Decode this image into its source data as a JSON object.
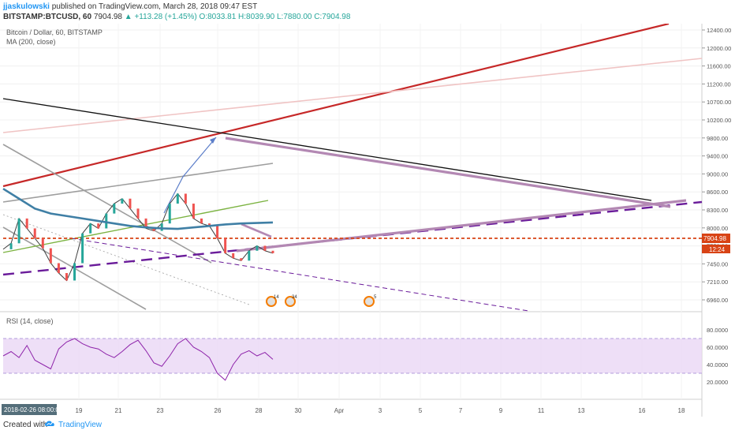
{
  "header": {
    "author": "jjaskulowski",
    "published_text": "published on TradingView.com, March 28, 2018 09:47 EST",
    "symbol": "BITSTAMP:BTCUSD, 60",
    "last_price": "7904.98",
    "change": "▲ +113.28 (+1.45%)",
    "open": "O:8033.81",
    "high": "H:8039.90",
    "low": "L:7880.00",
    "close": "C:7904.98"
  },
  "chart_data": {
    "type": "line",
    "title": "Bitcoin / Dollar, 60, BITSTAMP",
    "indicator_label": "MA (200, close)",
    "rsi_label": "RSI (14, close)",
    "y_ticks": [
      "12400.00",
      "12000.00",
      "11600.00",
      "11200.00",
      "10700.00",
      "10200.00",
      "9800.00",
      "9400.00",
      "9000.00",
      "8600.00",
      "8300.00",
      "8000.00",
      "7750.00",
      "7450.00",
      "7210.00",
      "6960.00"
    ],
    "rsi_ticks": [
      "80.0000",
      "60.0000",
      "40.0000",
      "20.0000"
    ],
    "x_ticks": [
      "19",
      "21",
      "23",
      "26",
      "28",
      "30",
      "Apr",
      "3",
      "5",
      "7",
      "9",
      "11",
      "13",
      "16",
      "18"
    ],
    "crosshair_date": "2018-02-26 08:00:00",
    "last_price_label": "7904.98",
    "countdown_label": "12:24",
    "price_series": [
      7980,
      8100,
      8600,
      8400,
      8200,
      8000,
      7700,
      7500,
      7350,
      7700,
      8300,
      8500,
      8400,
      8700,
      8900,
      9000,
      8800,
      8600,
      8400,
      8350,
      8500,
      8900,
      9100,
      8900,
      8600,
      8500,
      8450,
      8200,
      7900,
      7800,
      7750,
      7950,
      8050,
      7950,
      7900
    ],
    "ma_series": [
      9200,
      9000,
      8800,
      8700,
      8650,
      8600,
      8550,
      8500,
      8450,
      8420,
      8400,
      8390,
      8420,
      8450,
      8480,
      8500,
      8510,
      8520
    ],
    "rsi_series": [
      50,
      55,
      48,
      62,
      45,
      40,
      35,
      58,
      66,
      70,
      64,
      60,
      58,
      52,
      48,
      55,
      63,
      68,
      56,
      42,
      38,
      50,
      64,
      70,
      60,
      55,
      48,
      30,
      22,
      40,
      52,
      56,
      50,
      54,
      46
    ],
    "events": [
      {
        "label": "14"
      },
      {
        "label": "34"
      },
      {
        "label": "5"
      }
    ]
  },
  "footer": {
    "created_with": "Created with",
    "brand": "TradingView"
  }
}
